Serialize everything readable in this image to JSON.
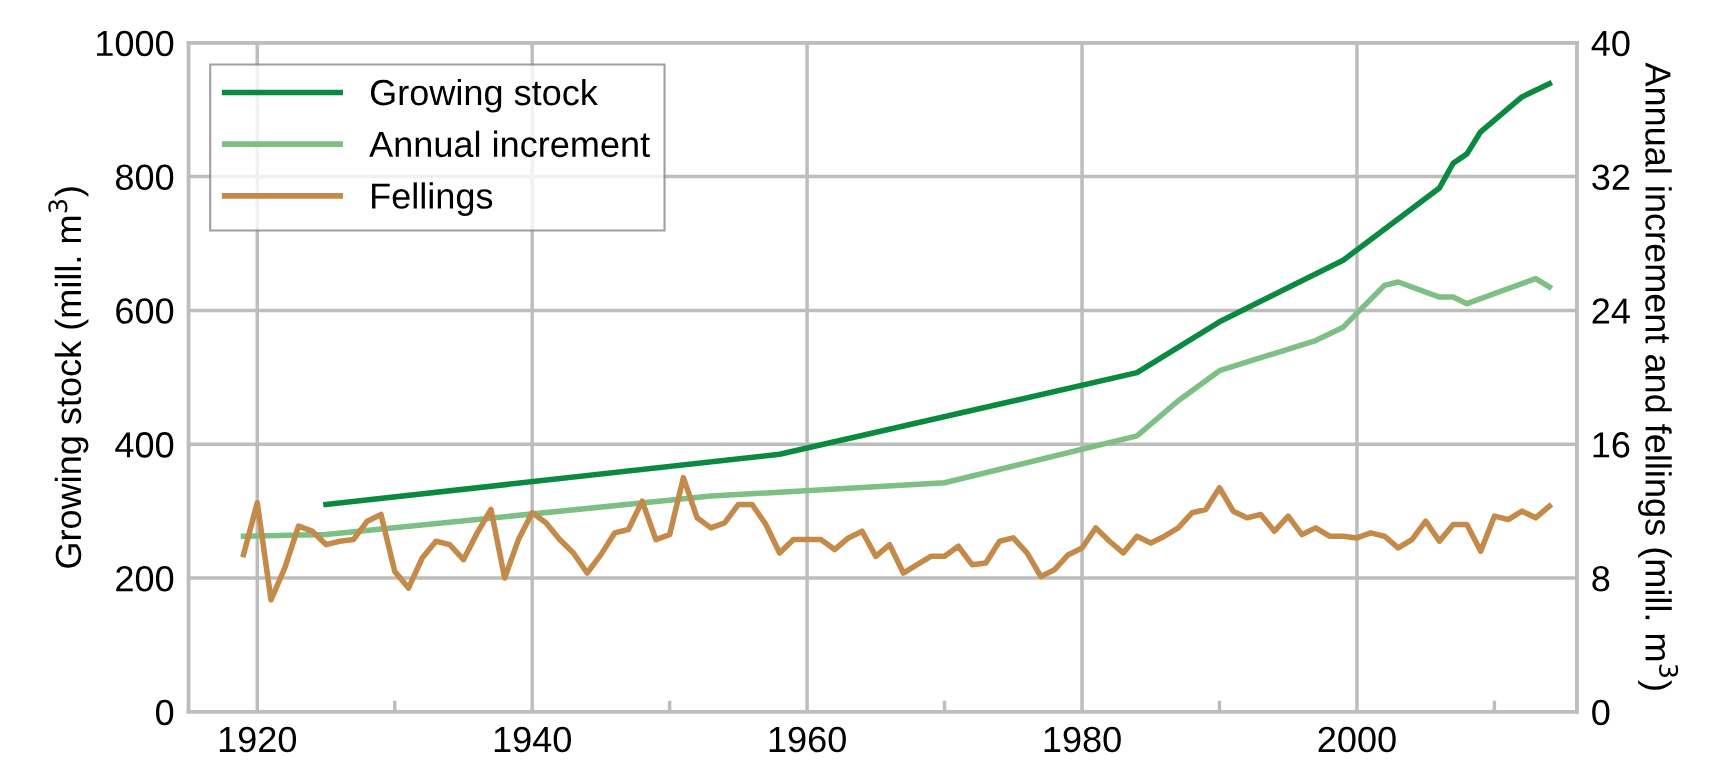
{
  "chart_data": {
    "type": "line",
    "xlabel": null,
    "ylabel": "Growing stock (mill. m$^{3}$)",
    "y2label": "Annual increment and fellings (mill. m$^{3}$)",
    "xlim": [
      1915,
      2016
    ],
    "xticks": [
      1920,
      {
        "value": 1930,
        "label": null
      },
      1940,
      {
        "value": 1950,
        "label": null
      },
      1960,
      {
        "value": 1970,
        "label": null
      },
      1980,
      {
        "value": 1990,
        "label": null
      },
      2000,
      {
        "value": 2010,
        "label": null
      }
    ],
    "ylim": [
      0,
      1000
    ],
    "yticks": [
      0,
      200,
      400,
      600,
      800,
      1000
    ],
    "y2lim": [
      0,
      40
    ],
    "y2ticks": [
      0,
      8,
      16,
      24,
      32,
      40
    ],
    "grid": true,
    "legend": "top left",
    "line_style": "solid",
    "series": [
      {
        "name": "Growing stock",
        "color": "#0a8a3e",
        "x": [
          1925,
          1958,
          1984,
          1990,
          1999,
          2006,
          2007,
          2008,
          2009,
          2012,
          2014
        ],
        "values": [
          310,
          385,
          507,
          583,
          675,
          783,
          820,
          834,
          867,
          919,
          939
        ]
      },
      {
        "name": "Annual increment",
        "color": "#7dbf84",
        "axis": "y2",
        "x": [
          1919,
          1925,
          1953,
          1970,
          1984,
          1987,
          1990,
          1997,
          1999,
          2002,
          2003,
          2006,
          2007,
          2008,
          2013,
          2014
        ],
        "values": [
          10.5,
          10.6,
          12.9,
          13.7,
          16.5,
          18.6,
          20.4,
          22.2,
          23.0,
          25.5,
          25.7,
          24.8,
          24.8,
          24.4,
          25.9,
          25.4
        ]
      },
      {
        "name": "Fellings",
        "color": "#c48a4a",
        "axis": "y2",
        "x": [
          1919,
          1920,
          1921,
          1922,
          1923,
          1924,
          1925,
          1926,
          1927,
          1928,
          1929,
          1930,
          1931,
          1932,
          1933,
          1934,
          1935,
          1936,
          1937,
          1938,
          1939,
          1940,
          1941,
          1942,
          1943,
          1944,
          1945,
          1946,
          1947,
          1948,
          1949,
          1950,
          1951,
          1952,
          1953,
          1954,
          1955,
          1956,
          1957,
          1958,
          1959,
          1960,
          1961,
          1962,
          1963,
          1964,
          1965,
          1966,
          1967,
          1968,
          1969,
          1970,
          1971,
          1972,
          1973,
          1974,
          1975,
          1976,
          1977,
          1978,
          1979,
          1980,
          1981,
          1982,
          1983,
          1984,
          1985,
          1986,
          1987,
          1988,
          1989,
          1990,
          1991,
          1992,
          1993,
          1994,
          1995,
          1996,
          1997,
          1998,
          1999,
          2000,
          2001,
          2002,
          2003,
          2004,
          2005,
          2006,
          2007,
          2008,
          2009,
          2010,
          2011,
          2012,
          2013,
          2014
        ],
        "values": [
          9.4,
          12.5,
          6.7,
          8.6,
          11.1,
          10.8,
          10.0,
          10.2,
          10.3,
          11.4,
          11.8,
          8.4,
          7.4,
          9.2,
          10.2,
          10.0,
          9.1,
          10.7,
          12.1,
          8.0,
          10.3,
          11.9,
          11.3,
          10.3,
          9.5,
          8.3,
          9.4,
          10.7,
          10.9,
          12.6,
          10.3,
          10.6,
          14.0,
          11.6,
          11.0,
          11.3,
          12.4,
          12.4,
          11.2,
          9.5,
          10.3,
          10.3,
          10.3,
          9.7,
          10.4,
          10.8,
          9.3,
          10.0,
          8.3,
          8.8,
          9.3,
          9.3,
          9.9,
          8.8,
          8.9,
          10.2,
          10.4,
          9.5,
          8.1,
          8.5,
          9.4,
          9.8,
          11.0,
          10.2,
          9.5,
          10.5,
          10.1,
          10.5,
          11.0,
          11.9,
          12.1,
          13.4,
          12.0,
          11.6,
          11.8,
          10.8,
          11.7,
          10.6,
          11.0,
          10.5,
          10.5,
          10.4,
          10.7,
          10.5,
          9.8,
          10.3,
          11.4,
          10.2,
          11.2,
          11.2,
          9.6,
          11.7,
          11.5,
          12.0,
          11.6,
          12.3
        ]
      }
    ]
  }
}
